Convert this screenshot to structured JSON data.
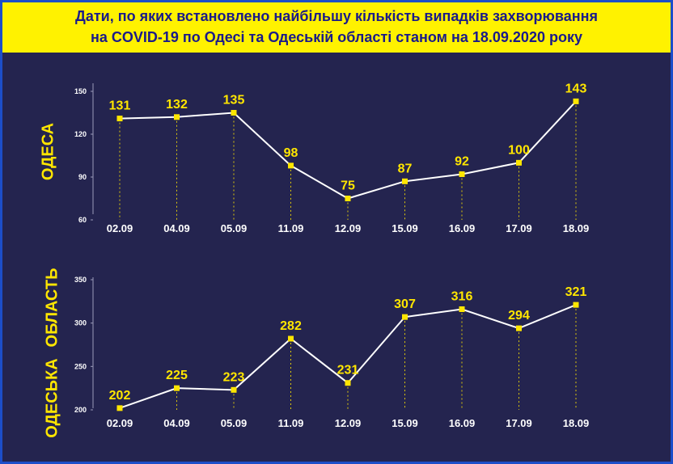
{
  "title": {
    "line1": "Дати, по яких встановлено найбільшу кількість випадків захворювання",
    "line2": "на COVID-19 по Одесі та Одеській області станом на 18.09.2020 року"
  },
  "colors": {
    "background": "#24244f",
    "border": "#1c4ec9",
    "title_bg": "#fff200",
    "title_text": "#1a1a8a",
    "accent": "#ffe600",
    "line": "#ffffff",
    "axis_text": "#ffffff"
  },
  "chart_data": [
    {
      "type": "line",
      "side_label": "ОДЕСА",
      "categories": [
        "02.09",
        "04.09",
        "05.09",
        "11.09",
        "12.09",
        "15.09",
        "16.09",
        "17.09",
        "18.09"
      ],
      "values": [
        131,
        132,
        135,
        98,
        75,
        87,
        92,
        100,
        143
      ],
      "ylim": [
        60,
        150
      ],
      "yticks": [
        60,
        90,
        120,
        150
      ],
      "grid": false,
      "legend": "none"
    },
    {
      "type": "line",
      "side_label_top": "ОБЛАСТЬ",
      "side_label_bottom": "ОДЕСЬКА",
      "categories": [
        "02.09",
        "04.09",
        "05.09",
        "11.09",
        "12.09",
        "15.09",
        "16.09",
        "17.09",
        "18.09"
      ],
      "values": [
        202,
        225,
        223,
        282,
        231,
        307,
        316,
        294,
        321
      ],
      "ylim": [
        200,
        350
      ],
      "yticks": [
        200,
        250,
        300,
        350
      ],
      "grid": false,
      "legend": "none"
    }
  ]
}
